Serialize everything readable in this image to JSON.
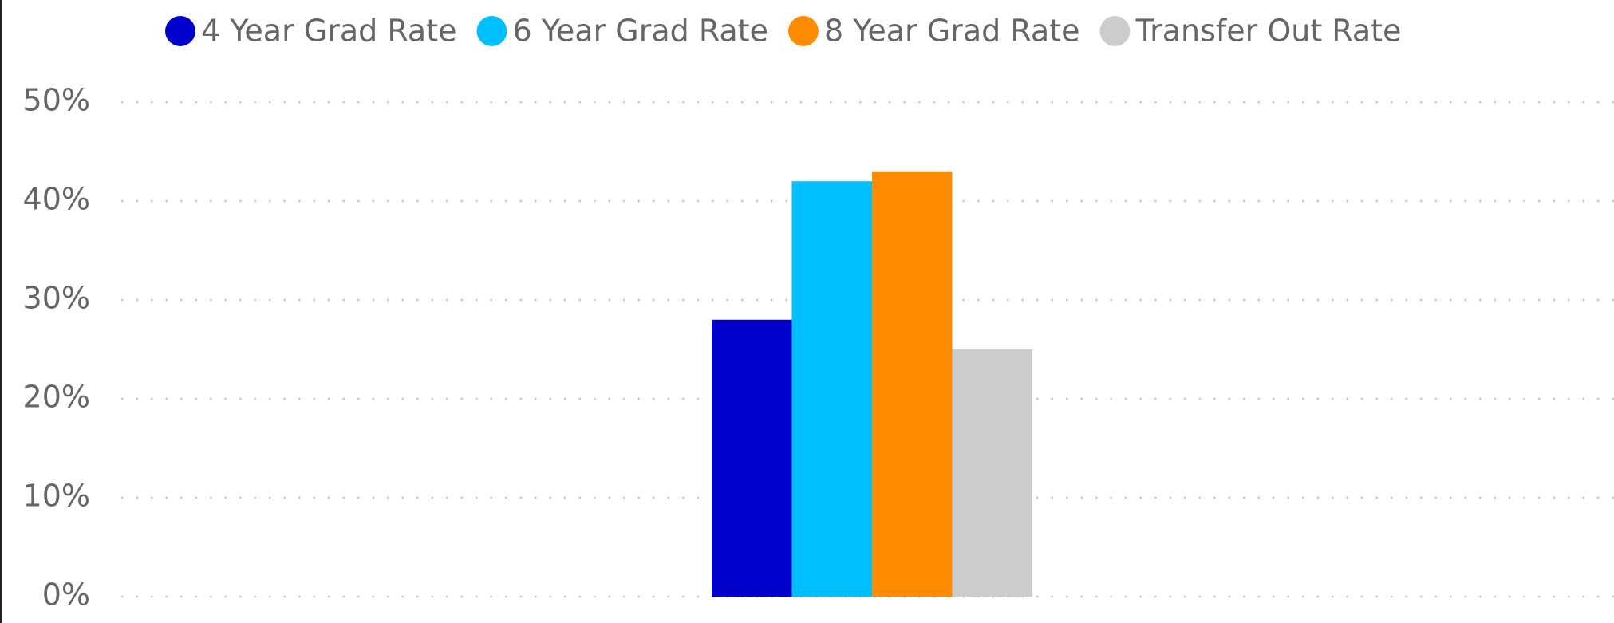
{
  "chart_data": {
    "type": "bar",
    "categories": [
      null
    ],
    "series": [
      {
        "name": "4 Year Grad Rate",
        "color": "#0000cc",
        "values": [
          28
        ]
      },
      {
        "name": "6 Year Grad Rate",
        "color": "#00bfff",
        "values": [
          42
        ]
      },
      {
        "name": "8 Year Grad Rate",
        "color": "#ff8c00",
        "values": [
          43
        ]
      },
      {
        "name": "Transfer Out Rate",
        "color": "#cccccc",
        "values": [
          25
        ]
      }
    ],
    "ylim": [
      0,
      50
    ],
    "yticks": [
      {
        "value": 0,
        "label": "0%"
      },
      {
        "value": 10,
        "label": "10%"
      },
      {
        "value": 20,
        "label": "20%"
      },
      {
        "value": 30,
        "label": "30%"
      },
      {
        "value": 40,
        "label": "40%"
      },
      {
        "value": 50,
        "label": "50%"
      }
    ],
    "grid": true,
    "legend": "top"
  }
}
